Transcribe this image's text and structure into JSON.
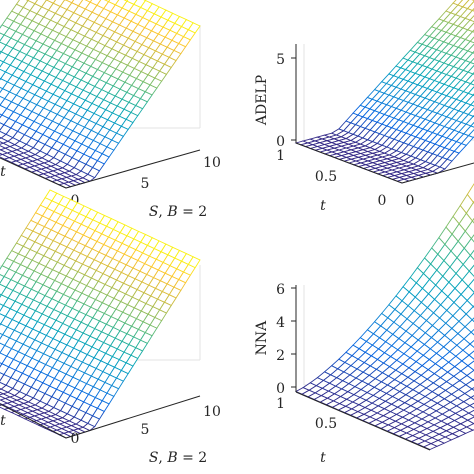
{
  "chart_data": [
    {
      "type": "surface",
      "ylabel_partial": "t",
      "xlabel": "S, B = 2",
      "x_ticks": [
        "0",
        "5",
        "10"
      ],
      "t_ticks": [
        "0"
      ],
      "x_range": [
        0,
        10
      ],
      "t_range": [
        0,
        1
      ],
      "z_range": [
        0,
        8
      ],
      "colormap": "parula",
      "grid": true,
      "surface_rule": "z = max(S - 2, 0) + small time value near S = 2"
    },
    {
      "type": "surface",
      "zlabel": "ADELP",
      "tlabel": "t",
      "z_ticks": [
        "0",
        "5"
      ],
      "t_ticks": [
        "1",
        "0.5",
        "0"
      ],
      "x_ticks": [
        "0"
      ],
      "z_range": [
        0,
        8
      ],
      "t_range": [
        0,
        1
      ],
      "colormap": "parula",
      "grid": true,
      "surface_rule": "z = max(S - 2, 0)"
    },
    {
      "type": "surface",
      "ylabel_partial": "t",
      "xlabel": "S, B = 2",
      "x_ticks": [
        "0",
        "5",
        "10"
      ],
      "x_range": [
        0,
        10
      ],
      "t_range": [
        0,
        1
      ],
      "z_range": [
        0,
        8
      ],
      "colormap": "parula",
      "grid": true,
      "surface_rule": "z = max(S - 2, 0)"
    },
    {
      "type": "surface",
      "zlabel": "NNA",
      "tlabel": "t",
      "z_ticks": [
        "0",
        "2",
        "4",
        "6"
      ],
      "t_ticks": [
        "1",
        "0.5"
      ],
      "z_range": [
        0,
        6.6
      ],
      "t_range": [
        0,
        1
      ],
      "colormap": "parula",
      "grid": true,
      "surface_rule": "error-like surface peaking at S = 10, t = 1"
    }
  ]
}
